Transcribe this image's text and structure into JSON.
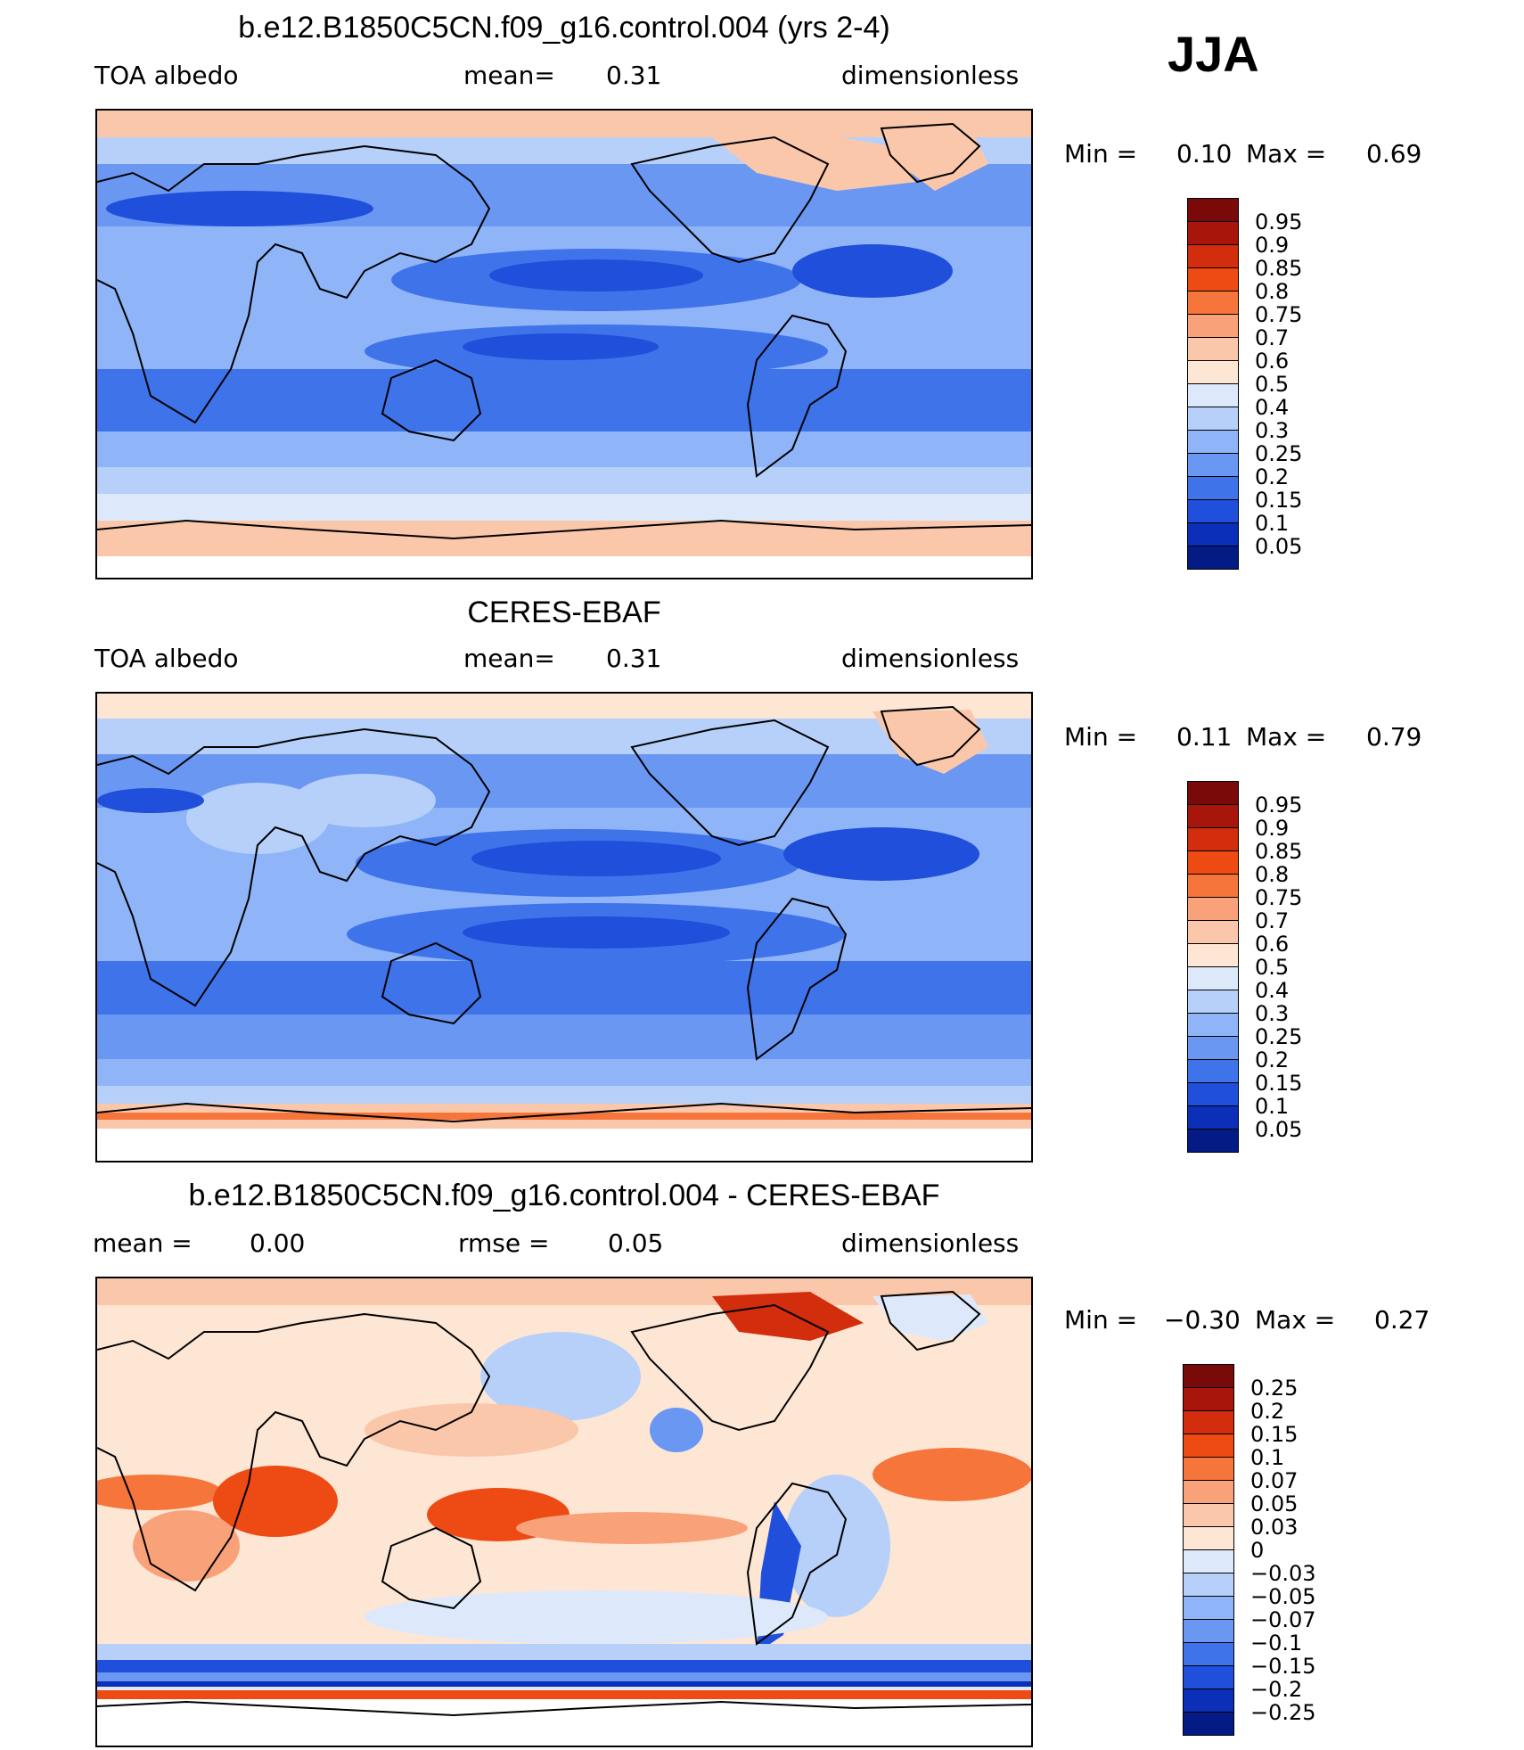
{
  "season": "JJA",
  "panels": [
    {
      "id": "model",
      "title": "b.e12.B1850C5CN.f09_g16.control.004 (yrs 2-4)",
      "left_label": "TOA albedo",
      "center_label": "mean=",
      "center_value": "0.31",
      "right_label": "dimensionless",
      "min_label": "Min =",
      "min_value": "0.10",
      "max_label": "Max =",
      "max_value": "0.69"
    },
    {
      "id": "obs",
      "title": "CERES-EBAF",
      "left_label": "TOA albedo",
      "center_label": "mean=",
      "center_value": "0.31",
      "right_label": "dimensionless",
      "min_label": "Min =",
      "min_value": "0.11",
      "max_label": "Max =",
      "max_value": "0.79"
    },
    {
      "id": "diff",
      "title": "b.e12.B1850C5CN.f09_g16.control.004 - CERES-EBAF",
      "left_label": "mean =",
      "left_value": "0.00",
      "center_label": "rmse =",
      "center_value": "0.05",
      "right_label": "dimensionless",
      "min_label": "Min =",
      "min_value": "−0.30",
      "max_label": "Max =",
      "max_value": "0.27"
    }
  ],
  "colorbars": {
    "albedo": {
      "labels": [
        "0.95",
        "0.9",
        "0.85",
        "0.8",
        "0.75",
        "0.7",
        "0.6",
        "0.5",
        "0.4",
        "0.3",
        "0.25",
        "0.2",
        "0.15",
        "0.1",
        "0.05"
      ],
      "colors": [
        "#7a0a0a",
        "#a8150b",
        "#d22d0c",
        "#ee4a14",
        "#f5753a",
        "#f9a27a",
        "#fbc7ab",
        "#fde6d4",
        "#dde9fb",
        "#b7d0fa",
        "#8fb4f7",
        "#6a97f1",
        "#3f73ea",
        "#1f4fdb",
        "#0b2fb8",
        "#041a84"
      ]
    },
    "diff": {
      "labels": [
        "0.25",
        "0.2",
        "0.15",
        "0.1",
        "0.07",
        "0.05",
        "0.03",
        "0",
        "−0.03",
        "−0.05",
        "−0.07",
        "−0.1",
        "−0.15",
        "−0.2",
        "−0.25"
      ],
      "colors": [
        "#7a0a0a",
        "#a8150b",
        "#d22d0c",
        "#ee4a14",
        "#f5753a",
        "#f9a27a",
        "#fbc7ab",
        "#fde6d4",
        "#dde9fb",
        "#b7d0fa",
        "#8fb4f7",
        "#6a97f1",
        "#3f73ea",
        "#1f4fdb",
        "#0b2fb8",
        "#041a84"
      ]
    }
  }
}
